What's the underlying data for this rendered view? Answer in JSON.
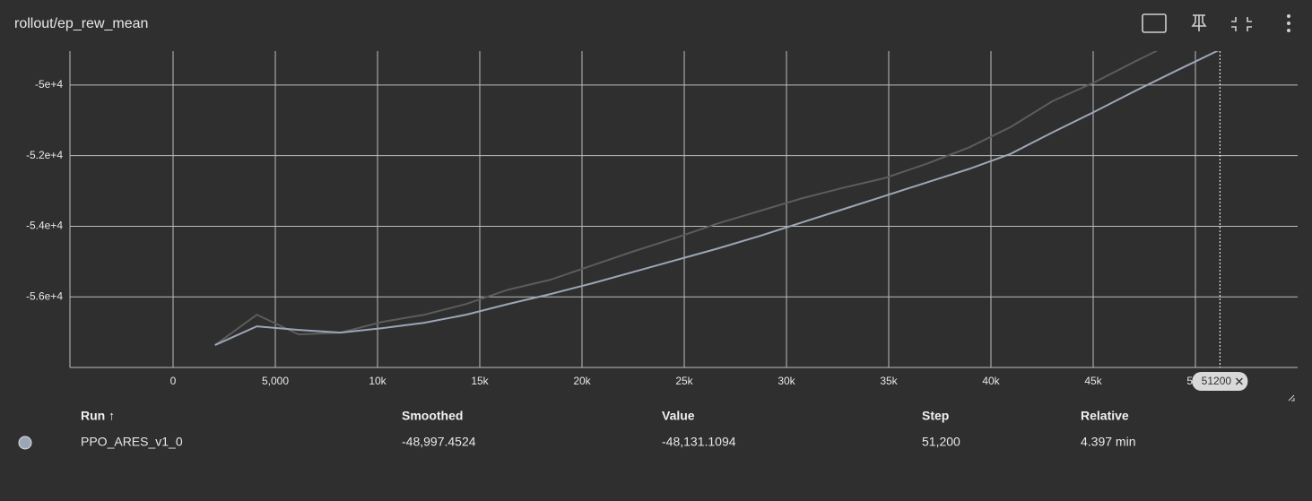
{
  "title": "rollout/ep_rew_mean",
  "chart_data": {
    "type": "line",
    "x": [
      2048,
      4096,
      6144,
      8192,
      10240,
      12288,
      14336,
      16384,
      18432,
      20480,
      22528,
      24576,
      26624,
      28672,
      30720,
      32768,
      34816,
      36864,
      38912,
      40960,
      43008,
      45056,
      47104,
      49152,
      51200
    ],
    "series": [
      {
        "color": "#5c5c5c",
        "values": [
          -57367,
          -56506,
          -57063,
          -57013,
          -56709,
          -56506,
          -56203,
          -55797,
          -55519,
          -55114,
          -54709,
          -54329,
          -53924,
          -53570,
          -53215,
          -52911,
          -52633,
          -52228,
          -51772,
          -51190,
          -50456,
          -49924,
          -49316,
          -48734,
          -48131.1094
        ]
      },
      {
        "color": "#9ba7b7",
        "values": [
          -57367,
          -56835,
          -56937,
          -57013,
          -56886,
          -56734,
          -56506,
          -56203,
          -55924,
          -55620,
          -55291,
          -54962,
          -54633,
          -54278,
          -53899,
          -53519,
          -53139,
          -52759,
          -52380,
          -51949,
          -51342,
          -50759,
          -50152,
          -49570,
          -48997.4524
        ]
      }
    ],
    "xlim": [
      -5044,
      55000
    ],
    "xticks": [
      0,
      {
        "value": 5000,
        "label": "5,000"
      },
      {
        "value": 10000,
        "label": "10k"
      },
      {
        "value": 15000,
        "label": "15k"
      },
      {
        "value": 20000,
        "label": "20k"
      },
      {
        "value": 25000,
        "label": "25k"
      },
      {
        "value": 30000,
        "label": "30k"
      },
      {
        "value": 35000,
        "label": "35k"
      },
      {
        "value": 40000,
        "label": "40k"
      },
      {
        "value": 45000,
        "label": "45k"
      },
      {
        "value": 50000,
        "label": "50k"
      }
    ],
    "ylim": [
      -58000,
      -49038
    ],
    "yticks": [
      {
        "value": -56000,
        "label": "-5.6e+4"
      },
      {
        "value": -54000,
        "label": "-5.4e+4"
      },
      {
        "value": -52000,
        "label": "-5.2e+4"
      },
      {
        "value": -50000,
        "label": "-5e+4"
      }
    ],
    "grid": true,
    "hover_step": 51200
  },
  "table": {
    "columns": [
      "Run ↑",
      "Smoothed",
      "Value",
      "Step",
      "Relative"
    ],
    "rows": [
      [
        "PPO_ARES_v1_0",
        "-48,997.4524",
        "-48,131.1094",
        "51,200",
        "4.397 min"
      ]
    ]
  }
}
